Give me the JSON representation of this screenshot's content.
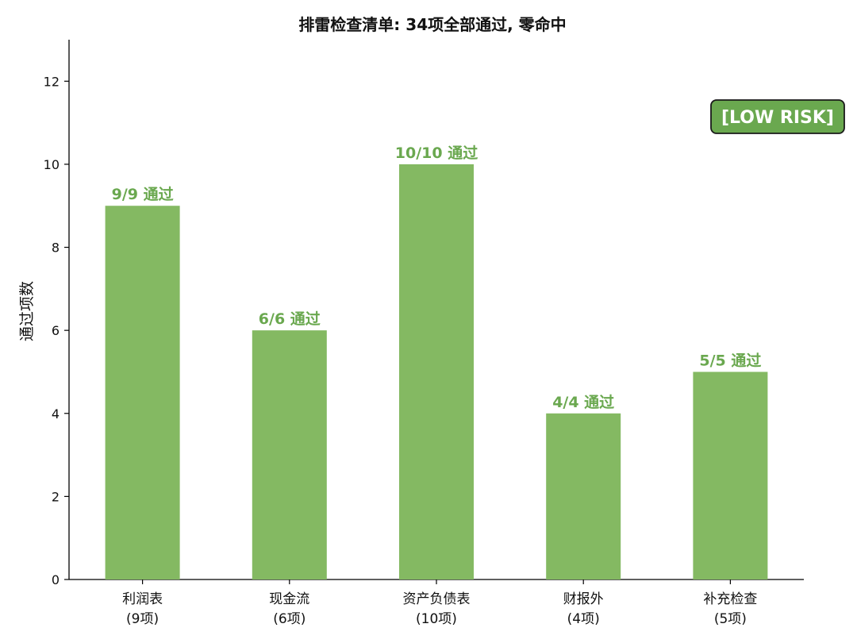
{
  "chart_data": {
    "type": "bar",
    "title": "排雷检查清单: 34项全部通过, 零命中",
    "ylabel": "通过项数",
    "xlabel": "",
    "ylim": [
      0,
      13
    ],
    "yticks": [
      0,
      2,
      4,
      6,
      8,
      10,
      12
    ],
    "categories": [
      {
        "name": "利润表",
        "sub": "(9项)"
      },
      {
        "name": "现金流",
        "sub": "(6项)"
      },
      {
        "name": "资产负债表",
        "sub": "(10项)"
      },
      {
        "name": "财报外",
        "sub": "(4项)"
      },
      {
        "name": "补充检查",
        "sub": "(5项)"
      }
    ],
    "values": [
      9,
      6,
      10,
      4,
      5
    ],
    "value_labels": [
      "9/9 通过",
      "6/6 通过",
      "10/10 通过",
      "4/4 通过",
      "5/5 通过"
    ],
    "bar_color": "#84b962",
    "label_color": "#6aa84f",
    "grid": false,
    "badge": {
      "text": "[LOW RISK]",
      "fill": "#6aa84f",
      "border": "#1a1a1a",
      "placement": "top-right"
    }
  }
}
